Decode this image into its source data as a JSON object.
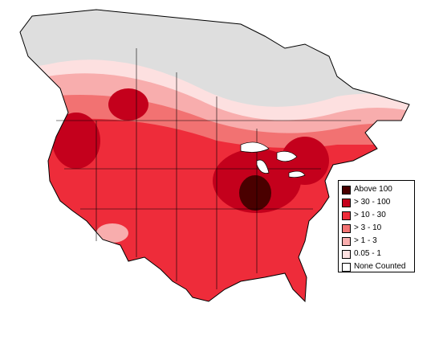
{
  "legend": {
    "items": [
      {
        "label": "Above 100",
        "color": "#4a0000"
      },
      {
        "label": "> 30 - 100",
        "color": "#c4001c"
      },
      {
        "label": "> 10 - 30",
        "color": "#ee2c3a"
      },
      {
        "label": "> 3 - 10",
        "color": "#f27272"
      },
      {
        "label": "> 1 - 3",
        "color": "#f8adad"
      },
      {
        "label": "0.05 - 1",
        "color": "#fde0e0"
      },
      {
        "label": "None Counted",
        "color": "#ffffff"
      }
    ]
  },
  "colors": {
    "canada_none": "#dedede",
    "outline": "#000000"
  }
}
